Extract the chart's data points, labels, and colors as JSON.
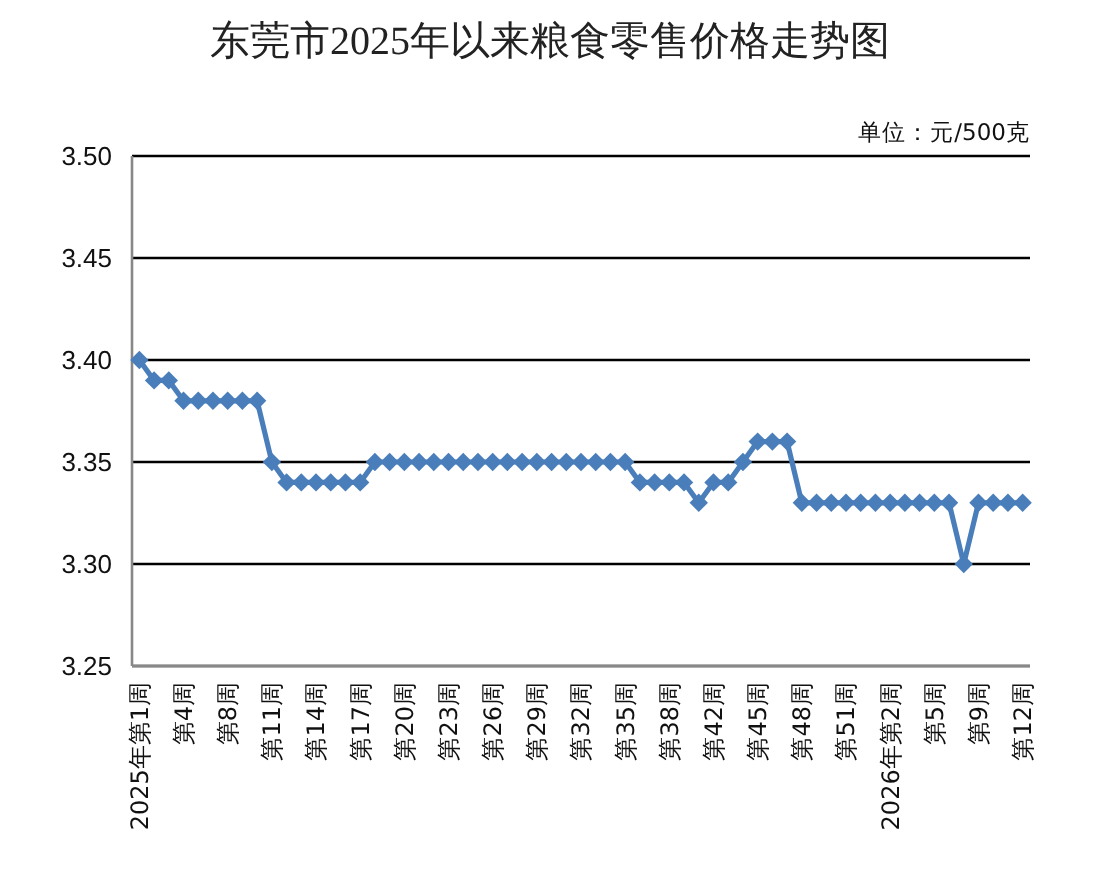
{
  "chart_data": {
    "type": "line",
    "title": "东莞市2025年以来粮食零售价格走势图",
    "annotations": [
      "单位：元/500克"
    ],
    "categories": [
      "2025年第1周",
      null,
      null,
      "第4周",
      null,
      null,
      "第8周",
      null,
      null,
      "第11周",
      null,
      null,
      "第14周",
      null,
      null,
      "第17周",
      null,
      null,
      "第20周",
      null,
      null,
      "第23周",
      null,
      null,
      "第26周",
      null,
      null,
      "第29周",
      null,
      null,
      "第32周",
      null,
      null,
      "第35周",
      null,
      null,
      "第38周",
      null,
      null,
      "第42周",
      null,
      null,
      "第45周",
      null,
      null,
      "第48周",
      null,
      null,
      "第51周",
      null,
      null,
      "2026年第2周",
      null,
      null,
      "第5周",
      null,
      null,
      "第9周",
      null,
      null,
      "第12周"
    ],
    "series": [
      {
        "color": "#4a7ebb",
        "values": [
          3.4,
          3.39,
          3.39,
          3.38,
          3.38,
          3.38,
          3.38,
          3.38,
          3.38,
          3.35,
          3.34,
          3.34,
          3.34,
          3.34,
          3.34,
          3.34,
          3.35,
          3.35,
          3.35,
          3.35,
          3.35,
          3.35,
          3.35,
          3.35,
          3.35,
          3.35,
          3.35,
          3.35,
          3.35,
          3.35,
          3.35,
          3.35,
          3.35,
          3.35,
          3.34,
          3.34,
          3.34,
          3.34,
          3.33,
          3.34,
          3.34,
          3.35,
          3.36,
          3.36,
          3.36,
          3.33,
          3.33,
          3.33,
          3.33,
          3.33,
          3.33,
          3.33,
          3.33,
          3.33,
          3.33,
          3.33,
          3.3,
          3.33,
          3.33,
          3.33,
          3.33
        ]
      }
    ],
    "ylim": [
      3.25,
      3.5
    ],
    "yticks": [
      3.25,
      {
        "value": 3.3,
        "label": "3.30"
      },
      3.35,
      {
        "value": 3.4,
        "label": "3.40"
      },
      3.45,
      {
        "value": 3.5,
        "label": "3.50"
      }
    ],
    "grid": "y",
    "marker": "diamond",
    "line_style": "solid"
  }
}
